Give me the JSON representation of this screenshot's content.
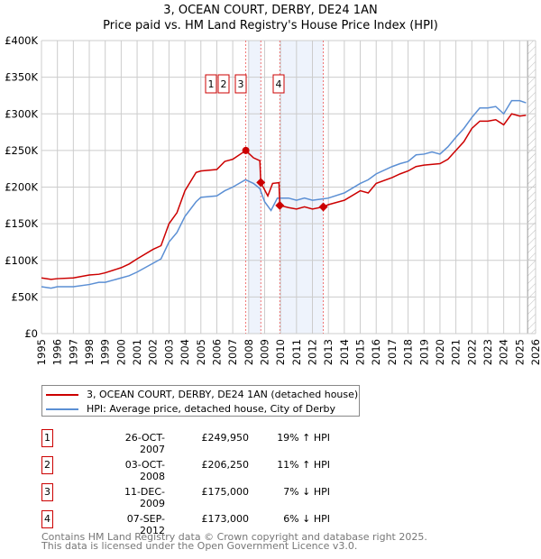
{
  "chart_data": {
    "type": "line",
    "title": "3, OCEAN COURT, DERBY, DE24 1AN",
    "subtitle": "Price paid vs. HM Land Registry's House Price Index (HPI)",
    "xlim": [
      1995,
      2026
    ],
    "ylim": [
      0,
      400000
    ],
    "x_ticks": [
      "1995",
      "1996",
      "1997",
      "1998",
      "1999",
      "2000",
      "2001",
      "2002",
      "2003",
      "2004",
      "2005",
      "2006",
      "2007",
      "2008",
      "2009",
      "2010",
      "2011",
      "2012",
      "2013",
      "2014",
      "2015",
      "2016",
      "2017",
      "2018",
      "2019",
      "2020",
      "2021",
      "2022",
      "2023",
      "2024",
      "2025",
      "2026"
    ],
    "y_ticks": [
      {
        "v": 0,
        "l": "£0"
      },
      {
        "v": 50000,
        "l": "£50K"
      },
      {
        "v": 100000,
        "l": "£100K"
      },
      {
        "v": 150000,
        "l": "£150K"
      },
      {
        "v": 200000,
        "l": "£200K"
      },
      {
        "v": 250000,
        "l": "£250K"
      },
      {
        "v": 300000,
        "l": "£300K"
      },
      {
        "v": 350000,
        "l": "£350K"
      },
      {
        "v": 400000,
        "l": "£400K"
      }
    ],
    "grid": true,
    "series": [
      {
        "name": "3, OCEAN COURT, DERBY, DE24 1AN (detached house)",
        "color": "#cc0000",
        "x": [
          1995,
          1995.6,
          1996,
          1997,
          1998,
          1998.6,
          1999,
          2000,
          2000.5,
          2001,
          2002,
          2002.5,
          2003,
          2003.5,
          2004,
          2004.7,
          2005,
          2006,
          2006.5,
          2007,
          2007.82,
          2008.3,
          2008.7,
          2008.76,
          2009.2,
          2009.5,
          2009.9,
          2009.95,
          2010.5,
          2011,
          2011.5,
          2012,
          2012.68,
          2013,
          2014,
          2015,
          2015.5,
          2016,
          2017,
          2017.5,
          2018,
          2018.5,
          2019,
          2020,
          2020.5,
          2021,
          2021.5,
          2022,
          2022.5,
          2023,
          2023.5,
          2024,
          2024.5,
          2025,
          2025.4
        ],
        "y": [
          76000,
          74000,
          75000,
          76000,
          80000,
          81000,
          83000,
          90000,
          95000,
          102000,
          115000,
          120000,
          150000,
          165000,
          195000,
          220000,
          222000,
          224000,
          235000,
          238000,
          249950,
          240000,
          236000,
          206250,
          188000,
          205000,
          206000,
          175000,
          172000,
          170000,
          173000,
          170000,
          173000,
          176000,
          182000,
          195000,
          192000,
          205000,
          213000,
          218000,
          222000,
          228000,
          230000,
          232000,
          238000,
          250000,
          262000,
          280000,
          290000,
          290000,
          292000,
          285000,
          300000,
          297000,
          298000
        ]
      },
      {
        "name": "HPI: Average price, detached house, City of Derby",
        "color": "#5b8fd4",
        "x": [
          1995,
          1995.6,
          1996,
          1997,
          1998,
          1998.6,
          1999,
          2000,
          2000.5,
          2001,
          2002,
          2002.5,
          2003,
          2003.5,
          2004,
          2004.7,
          2005,
          2006,
          2006.5,
          2007,
          2007.8,
          2008.3,
          2008.7,
          2009,
          2009.4,
          2009.8,
          2010.5,
          2011,
          2011.5,
          2012,
          2012.7,
          2013,
          2014,
          2015,
          2015.5,
          2016,
          2017,
          2017.5,
          2018,
          2018.5,
          2019,
          2019.5,
          2020,
          2020.5,
          2021,
          2021.5,
          2022,
          2022.5,
          2023,
          2023.5,
          2024,
          2024.5,
          2025,
          2025.4
        ],
        "y": [
          64000,
          62000,
          64000,
          64000,
          67000,
          70000,
          70000,
          76000,
          79000,
          84000,
          96000,
          102000,
          125000,
          138000,
          160000,
          180000,
          186000,
          188000,
          195000,
          200000,
          210000,
          205000,
          198000,
          180000,
          168000,
          185000,
          185000,
          182000,
          185000,
          182000,
          184000,
          185000,
          192000,
          205000,
          210000,
          218000,
          228000,
          232000,
          235000,
          244000,
          245000,
          248000,
          245000,
          255000,
          268000,
          280000,
          295000,
          308000,
          308000,
          310000,
          300000,
          318000,
          318000,
          315000
        ]
      }
    ],
    "shaded_ranges": [
      [
        2007.95,
        2008.76
      ],
      [
        2009.95,
        2012.68
      ]
    ],
    "forecast_hatch_from": 2025.5,
    "sales": [
      {
        "n": "1",
        "x": 2007.82,
        "y": 249950
      },
      {
        "n": "2",
        "x": 2008.76,
        "y": 206250
      },
      {
        "n": "3",
        "x": 2009.95,
        "y": 175000
      },
      {
        "n": "4",
        "x": 2012.68,
        "y": 173000
      }
    ],
    "legend_position": "below"
  },
  "transactions": [
    {
      "n": "1",
      "date": "26-OCT-2007",
      "price": "£249,950",
      "hpi": "19% ↑ HPI"
    },
    {
      "n": "2",
      "date": "03-OCT-2008",
      "price": "£206,250",
      "hpi": "11% ↑ HPI"
    },
    {
      "n": "3",
      "date": "11-DEC-2009",
      "price": "£175,000",
      "hpi": "7% ↓ HPI"
    },
    {
      "n": "4",
      "date": "07-SEP-2012",
      "price": "£173,000",
      "hpi": "6% ↓ HPI"
    }
  ],
  "footer": {
    "line1": "Contains HM Land Registry data © Crown copyright and database right 2025.",
    "line2": "This data is licensed under the Open Government Licence v3.0."
  }
}
